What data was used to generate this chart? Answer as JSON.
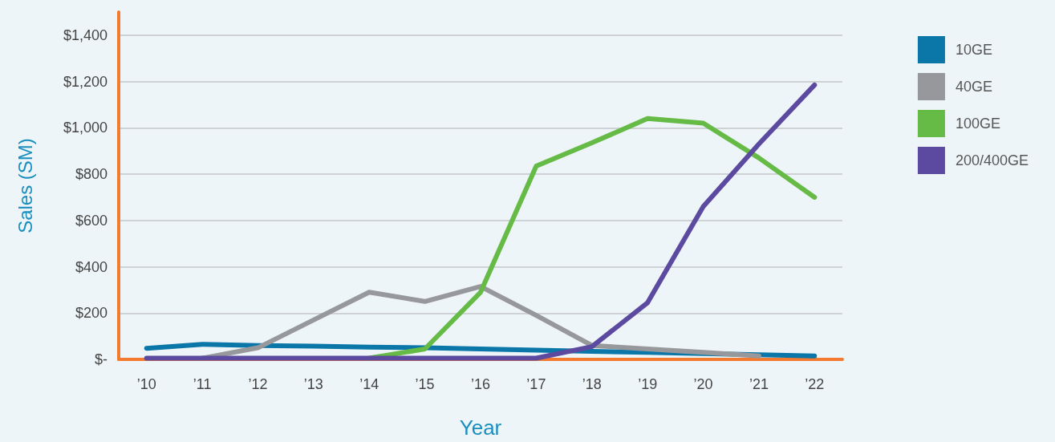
{
  "chart_data": {
    "type": "line",
    "xlabel": "Year",
    "ylabel": "Sales (SM)",
    "categories": [
      "’10",
      "’11",
      "’12",
      "’13",
      "’14",
      "’15",
      "’16",
      "’17",
      "’18",
      "’19",
      "’20",
      "’21",
      "’22"
    ],
    "series": [
      {
        "name": "10GE",
        "color": "#0a77a8",
        "values": [
          48,
          65,
          60,
          57,
          53,
          50,
          45,
          40,
          35,
          30,
          25,
          20,
          15
        ]
      },
      {
        "name": "40GE",
        "color": "#97989b",
        "values": [
          null,
          5,
          50,
          170,
          290,
          250,
          315,
          190,
          60,
          45,
          30,
          15,
          null
        ]
      },
      {
        "name": "100GE",
        "color": "#66bb46",
        "values": [
          null,
          null,
          null,
          null,
          5,
          45,
          290,
          835,
          935,
          1040,
          1020,
          870,
          700
        ]
      },
      {
        "name": "200/400GE",
        "color": "#5c4aa0",
        "values": [
          5,
          5,
          5,
          5,
          5,
          5,
          5,
          5,
          55,
          245,
          660,
          930,
          1185
        ]
      }
    ],
    "ylim": [
      0,
      1500
    ],
    "yticks": [
      {
        "value": 0,
        "label": "$-"
      },
      {
        "value": 200,
        "label": "$200"
      },
      {
        "value": 400,
        "label": "$400"
      },
      {
        "value": 600,
        "label": "$600"
      },
      {
        "value": 800,
        "label": "$800"
      },
      {
        "value": 1000,
        "label": "$1,000"
      },
      {
        "value": 1200,
        "label": "$1,200"
      },
      {
        "value": 1400,
        "label": "$1,400"
      }
    ],
    "grid": "y",
    "legend": "right",
    "marker": "none",
    "line_style": "solid"
  }
}
